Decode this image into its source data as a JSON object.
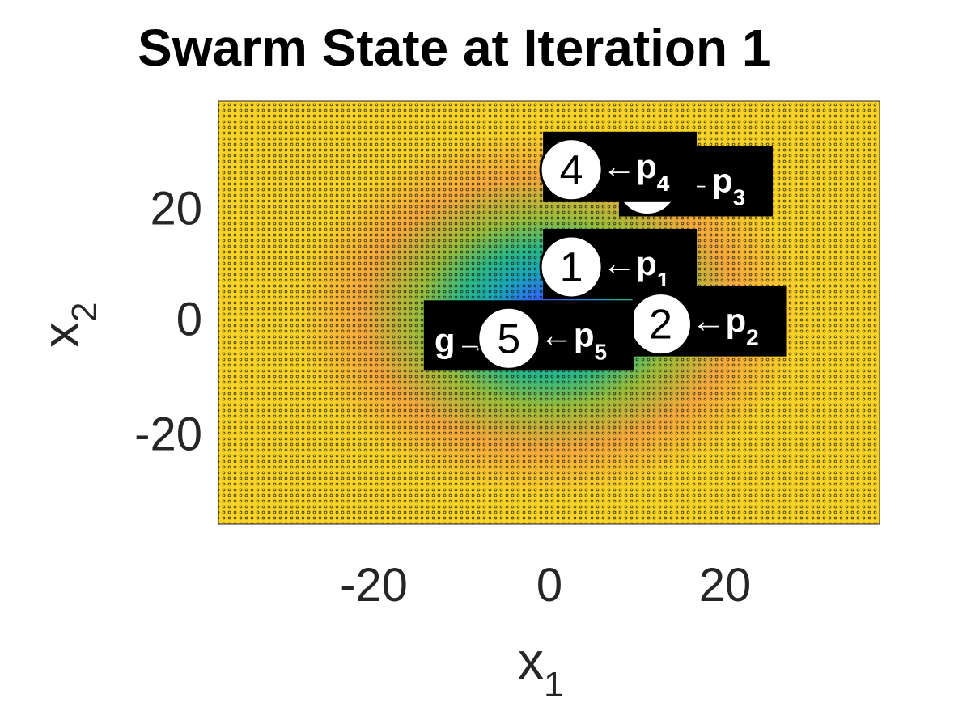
{
  "chart_data": {
    "type": "heatmap",
    "title": "Swarm State at Iteration 1",
    "xlabel": "x",
    "xlabel_sub": "1",
    "ylabel": "x",
    "ylabel_sub": "2",
    "xlim": [
      -37,
      37
    ],
    "ylim": [
      -37,
      37
    ],
    "xticks": [
      -20,
      0,
      20
    ],
    "yticks": [
      -20,
      0,
      20
    ],
    "xtick_labels": [
      "-20",
      "0",
      "20"
    ],
    "ytick_labels": [
      "-20",
      "0",
      "20"
    ],
    "colormap": [
      "#3e26a8",
      "#2e6cf3",
      "#1aa6b7",
      "#2cb883",
      "#9bbd39",
      "#f7a93c",
      "#f9d426",
      "#f9fb15"
    ],
    "contour_center": [
      0,
      0
    ],
    "particles": [
      {
        "id": "1",
        "x": 2.5,
        "y": 8,
        "pbest_label": "p",
        "pbest_sub": "1",
        "global_best": false
      },
      {
        "id": "2",
        "x": 12.5,
        "y": -2,
        "pbest_label": "p",
        "pbest_sub": "2",
        "global_best": false
      },
      {
        "id": "3",
        "x": 11,
        "y": 22.5,
        "pbest_label": "p",
        "pbest_sub": "3",
        "global_best": false
      },
      {
        "id": "4",
        "x": 2.5,
        "y": 25,
        "pbest_label": "p",
        "pbest_sub": "4",
        "global_best": false
      },
      {
        "id": "5",
        "x": -4.5,
        "y": -4.5,
        "pbest_label": "p",
        "pbest_sub": "5",
        "global_best": true
      }
    ],
    "global_best_label": "g"
  }
}
